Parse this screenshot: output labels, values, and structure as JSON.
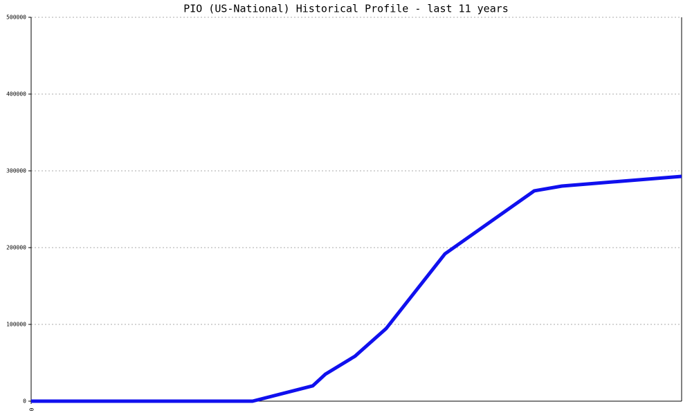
{
  "chart_data": {
    "type": "line",
    "title": "PIO (US-National) Historical Profile - last 11 years",
    "x": [
      0,
      320,
      407,
      425,
      468,
      513,
      598,
      727,
      767,
      940
    ],
    "series": [
      {
        "color": "#1010ee",
        "values": [
          0,
          0,
          20000,
          35000,
          58600,
          94600,
          191900,
          273900,
          280200,
          292800
        ]
      }
    ],
    "xlim": [
      0,
      940
    ],
    "xticks": [
      0
    ],
    "ylim": [
      0,
      500000
    ],
    "yticks": [
      0,
      100000,
      200000,
      300000,
      400000,
      500000
    ],
    "grid": true
  }
}
